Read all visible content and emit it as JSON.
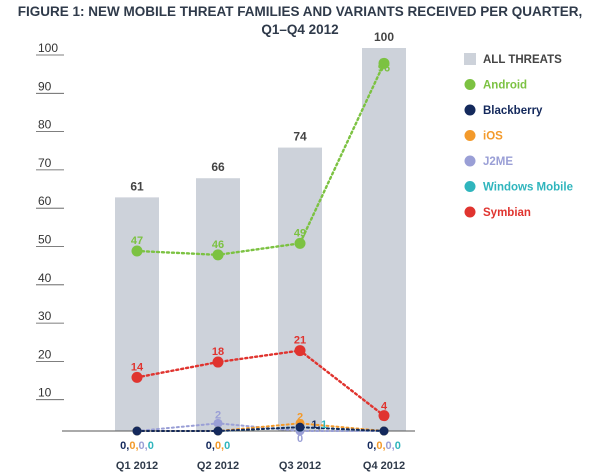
{
  "chart_data": {
    "type": "bar",
    "title_line1": "FIGURE 1: NEW MOBILE THREAT FAMILIES AND VARIANTS RECEIVED PER QUARTER,",
    "title_line2": "Q1–Q4 2012",
    "categories": [
      "Q1 2012",
      "Q2 2012",
      "Q3 2012",
      "Q4 2012"
    ],
    "ylim": [
      0,
      100
    ],
    "yticks": [
      10,
      20,
      30,
      40,
      50,
      60,
      70,
      80,
      90,
      100
    ],
    "grid": false,
    "legend_position": "right",
    "bars": {
      "name": "ALL THREATS",
      "values": [
        61,
        66,
        74,
        100
      ],
      "color": "#cdd2da"
    },
    "series": [
      {
        "name": "Android",
        "values": [
          47,
          46,
          49,
          96
        ],
        "color": "#7cc242"
      },
      {
        "name": "Blackberry",
        "values": [
          0,
          0,
          1,
          0
        ],
        "color": "#14295c"
      },
      {
        "name": "iOS",
        "values": [
          0,
          0,
          2,
          0
        ],
        "color": "#f39a2b"
      },
      {
        "name": "J2ME",
        "values": [
          0,
          2,
          0,
          0
        ],
        "color": "#9a9fd6"
      },
      {
        "name": "Windows Mobile",
        "values": [
          0,
          0,
          1,
          0
        ],
        "color": "#2fb5bd"
      },
      {
        "name": "Symbian",
        "values": [
          14,
          18,
          21,
          4
        ],
        "color": "#e0342f"
      }
    ],
    "point_labels": [
      {
        "series": "Android",
        "index": 0,
        "text": "47"
      },
      {
        "series": "Android",
        "index": 1,
        "text": "46"
      },
      {
        "series": "Android",
        "index": 2,
        "text": "49"
      },
      {
        "series": "Android",
        "index": 3,
        "text": "96"
      },
      {
        "series": "Symbian",
        "index": 0,
        "text": "14"
      },
      {
        "series": "Symbian",
        "index": 1,
        "text": "18"
      },
      {
        "series": "Symbian",
        "index": 2,
        "text": "21"
      },
      {
        "series": "Symbian",
        "index": 3,
        "text": "4"
      },
      {
        "series": "J2ME",
        "index": 1,
        "text": "2"
      },
      {
        "series": "iOS",
        "index": 2,
        "text": "2"
      },
      {
        "series": "Blackberry",
        "index": 2,
        "text": "1,"
      },
      {
        "series": "Windows Mobile",
        "index": 2,
        "text": "1"
      },
      {
        "series": "J2ME",
        "index": 2,
        "text": "0"
      }
    ],
    "zero_labels": [
      {
        "index": 0,
        "parts": [
          "0,",
          "0,",
          "0,",
          "0"
        ],
        "colors": [
          "#14295c",
          "#f39a2b",
          "#9a9fd6",
          "#2fb5bd"
        ]
      },
      {
        "index": 1,
        "parts": [
          "0,",
          "0,",
          "0"
        ],
        "colors": [
          "#14295c",
          "#f39a2b",
          "#2fb5bd"
        ]
      },
      {
        "index": 3,
        "parts": [
          "0,",
          "0,",
          "0,",
          "0"
        ],
        "colors": [
          "#14295c",
          "#f39a2b",
          "#9a9fd6",
          "#2fb5bd"
        ]
      }
    ]
  }
}
